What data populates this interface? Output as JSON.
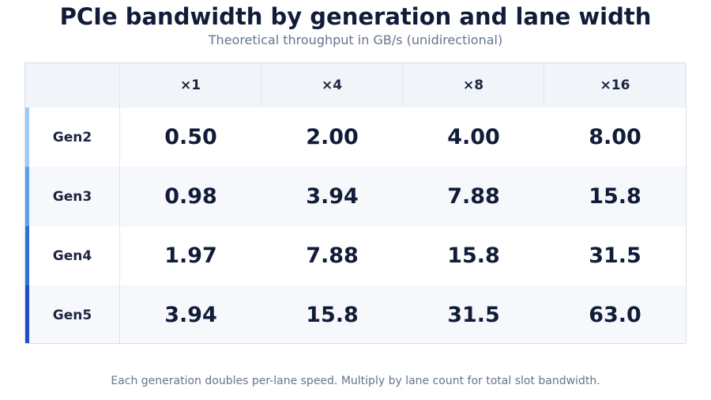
{
  "header": {
    "title": "PCIe bandwidth by generation and lane width",
    "subtitle": "Theoretical throughput in GB/s (unidirectional)"
  },
  "footnote": "Each generation doubles per-lane speed. Multiply by lane count for total slot bandwidth.",
  "colors": {
    "accent_gen2": "#9ec9f5",
    "accent_gen3": "#5f9fe8",
    "accent_gen4": "#2f6fdc",
    "accent_gen5": "#1f4fc9"
  },
  "chart_data": {
    "type": "table",
    "title": "PCIe bandwidth by generation and lane width",
    "subtitle": "Theoretical throughput in GB/s (unidirectional)",
    "columns": [
      "×1",
      "×4",
      "×8",
      "×16"
    ],
    "rows": [
      {
        "label": "Gen2",
        "values": [
          "0.50",
          "2.00",
          "4.00",
          "8.00"
        ]
      },
      {
        "label": "Gen3",
        "values": [
          "0.98",
          "3.94",
          "7.88",
          "15.8"
        ]
      },
      {
        "label": "Gen4",
        "values": [
          "1.97",
          "7.88",
          "15.8",
          "31.5"
        ]
      },
      {
        "label": "Gen5",
        "values": [
          "3.94",
          "15.8",
          "31.5",
          "63.0"
        ]
      }
    ]
  }
}
